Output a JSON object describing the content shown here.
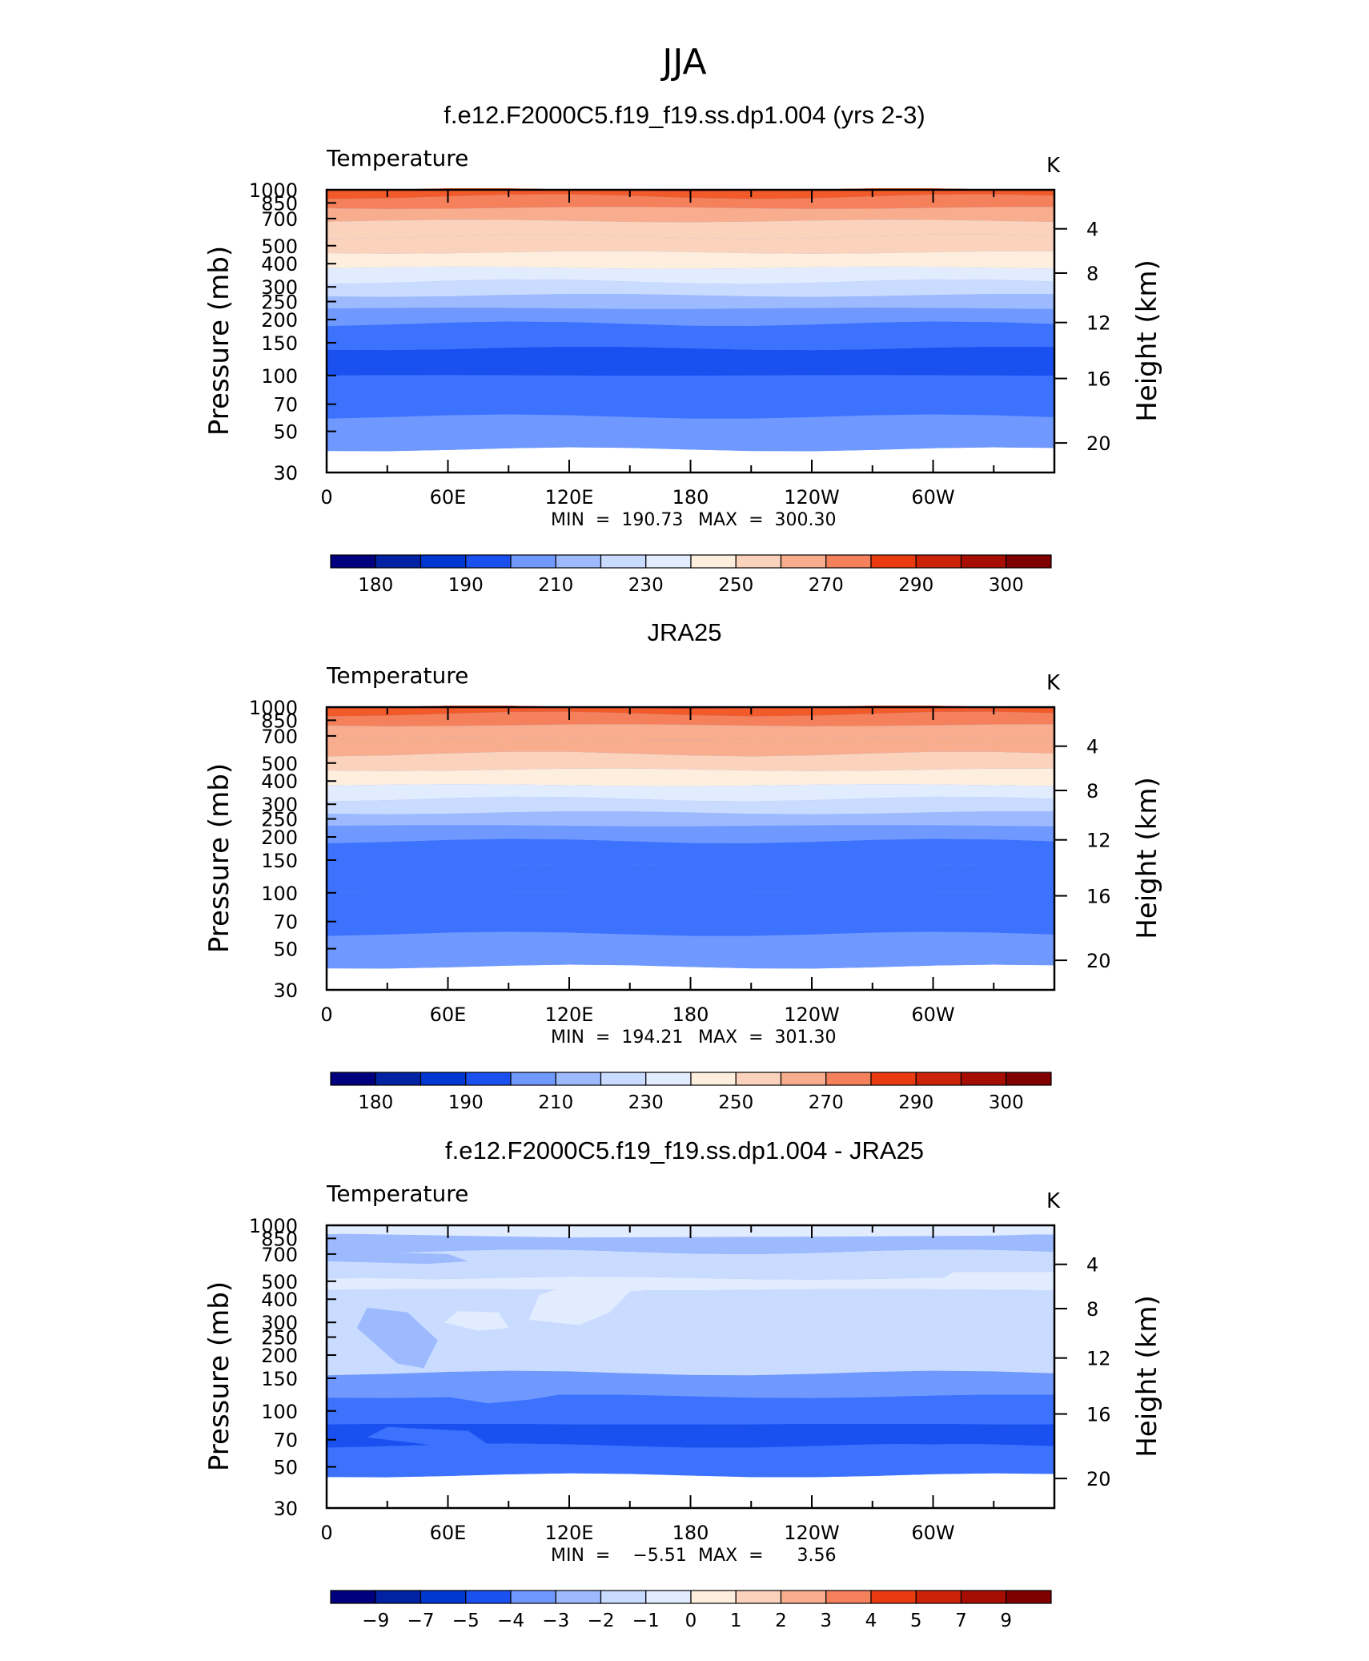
{
  "figure_title": "JJA",
  "colors": {
    "model_obs_scale": [
      "#00007f",
      "#0022a3",
      "#0037d1",
      "#1a50f0",
      "#3d72ff",
      "#6f99ff",
      "#9dbaff",
      "#c9dbff",
      "#e2ecff",
      "#fdeede",
      "#fbd2bc",
      "#f8ad8e",
      "#f4805c",
      "#f25a2a",
      "#ea3b10",
      "#cc2208",
      "#a60e04",
      "#800000"
    ],
    "diff_scale": [
      "#00007f",
      "#0022a3",
      "#0037d1",
      "#1a50f0",
      "#3d72ff",
      "#6f99ff",
      "#9dbaff",
      "#c9dbff",
      "#e2ecff",
      "#fdeede",
      "#fbd2bc",
      "#f8ad8e",
      "#f4805c",
      "#f25a2a",
      "#ea3b10",
      "#cc2208",
      "#a60e04",
      "#800000"
    ],
    "terrain": "#000000"
  },
  "chart_data": [
    {
      "type": "heatmap",
      "title": "f.e12.F2000C5.f19_f19.ss.dp1.004 (yrs 2-3)",
      "variable": "Temperature",
      "units": "K",
      "ylabel": "Pressure  (mb)",
      "ylabel_right": "Height  (km)",
      "y_scale": "log",
      "yticks": [
        "30",
        "50",
        "70",
        "100",
        "150",
        "200",
        "250",
        "300",
        "400",
        "500",
        "700",
        "850",
        "1000"
      ],
      "yticks_right": [
        "20",
        "16",
        "12",
        "8",
        "4"
      ],
      "xticks": [
        "0",
        "60E",
        "120E",
        "180",
        "120W",
        "60W"
      ],
      "xlim": [
        0,
        360
      ],
      "ylim": [
        1000,
        30
      ],
      "min_label": "MIN  =  190.73",
      "max_label": "MAX  =  300.30",
      "min": 190.73,
      "max": 300.3,
      "colorbar_labels": [
        "180",
        "190",
        "210",
        "230",
        "250",
        "270",
        "290",
        "300"
      ],
      "bands": [
        {
          "p": 30,
          "value": 218
        },
        {
          "p": 40,
          "value": 212
        },
        {
          "p": 60,
          "value": 205
        },
        {
          "p": 100,
          "value": 200
        },
        {
          "p": 140,
          "value": 204
        },
        {
          "p": 190,
          "value": 212
        },
        {
          "p": 230,
          "value": 222
        },
        {
          "p": 270,
          "value": 232
        },
        {
          "p": 320,
          "value": 245
        },
        {
          "p": 380,
          "value": 255
        },
        {
          "p": 460,
          "value": 262
        },
        {
          "p": 560,
          "value": 270
        },
        {
          "p": 680,
          "value": 278
        },
        {
          "p": 800,
          "value": 285
        },
        {
          "p": 920,
          "value": 292
        },
        {
          "p": 1000,
          "value": 298
        }
      ]
    },
    {
      "type": "heatmap",
      "title": "JRA25",
      "variable": "Temperature",
      "units": "K",
      "ylabel": "Pressure  (mb)",
      "ylabel_right": "Height  (km)",
      "y_scale": "log",
      "yticks": [
        "30",
        "50",
        "70",
        "100",
        "150",
        "200",
        "250",
        "300",
        "400",
        "500",
        "700",
        "850",
        "1000"
      ],
      "yticks_right": [
        "20",
        "16",
        "12",
        "8",
        "4"
      ],
      "xticks": [
        "0",
        "60E",
        "120E",
        "180",
        "120W",
        "60W"
      ],
      "xlim": [
        0,
        360
      ],
      "ylim": [
        1000,
        30
      ],
      "min_label": "MIN  =  194.21",
      "max_label": "MAX  =  301.30",
      "min": 194.21,
      "max": 301.3,
      "colorbar_labels": [
        "180",
        "190",
        "210",
        "230",
        "250",
        "270",
        "290",
        "300"
      ],
      "bands": [
        {
          "p": 30,
          "value": 218
        },
        {
          "p": 40,
          "value": 212
        },
        {
          "p": 60,
          "value": 206
        },
        {
          "p": 100,
          "value": 201
        },
        {
          "p": 140,
          "value": 206
        },
        {
          "p": 190,
          "value": 213
        },
        {
          "p": 230,
          "value": 222
        },
        {
          "p": 270,
          "value": 233
        },
        {
          "p": 320,
          "value": 246
        },
        {
          "p": 380,
          "value": 256
        },
        {
          "p": 460,
          "value": 263
        },
        {
          "p": 560,
          "value": 271
        },
        {
          "p": 680,
          "value": 279
        },
        {
          "p": 800,
          "value": 286
        },
        {
          "p": 920,
          "value": 293
        },
        {
          "p": 1000,
          "value": 299
        }
      ]
    },
    {
      "type": "heatmap",
      "title": "f.e12.F2000C5.f19_f19.ss.dp1.004 - JRA25",
      "variable": "Temperature",
      "units": "K",
      "ylabel": "Pressure  (mb)",
      "ylabel_right": "Height  (km)",
      "y_scale": "log",
      "yticks": [
        "30",
        "50",
        "70",
        "100",
        "150",
        "200",
        "250",
        "300",
        "400",
        "500",
        "700",
        "850",
        "1000"
      ],
      "yticks_right": [
        "20",
        "16",
        "12",
        "8",
        "4"
      ],
      "xticks": [
        "0",
        "60E",
        "120E",
        "180",
        "120W",
        "60W"
      ],
      "xlim": [
        0,
        360
      ],
      "ylim": [
        1000,
        30
      ],
      "min_label": "MIN  =    −5.51",
      "max_label": "MAX  =      3.56",
      "min": -5.51,
      "max": 3.56,
      "colorbar_labels": [
        "−9",
        "−7",
        "−5",
        "−4",
        "−3",
        "−2",
        "−1",
        "0",
        "1",
        "2",
        "3",
        "4",
        "5",
        "7",
        "9"
      ],
      "bands": [
        {
          "p": 30,
          "value": -2.5
        },
        {
          "p": 45,
          "value": -3.5
        },
        {
          "p": 65,
          "value": -4.5
        },
        {
          "p": 85,
          "value": -3.5
        },
        {
          "p": 120,
          "value": -2.5
        },
        {
          "p": 160,
          "value": -0.5
        },
        {
          "p": 450,
          "value": 0.5
        },
        {
          "p": 520,
          "value": -0.5
        },
        {
          "p": 720,
          "value": -1.5
        },
        {
          "p": 900,
          "value": 0.5
        }
      ]
    }
  ]
}
